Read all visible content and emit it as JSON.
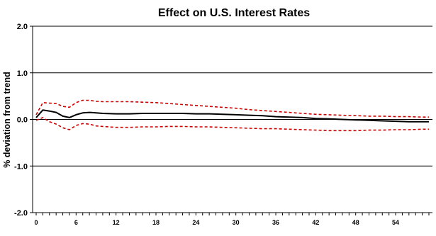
{
  "chart_data": {
    "type": "line",
    "title": "Effect on U.S. Interest Rates",
    "xlabel": "",
    "ylabel": "% deviation from trend",
    "ylim": [
      -2.0,
      2.0
    ],
    "xlim": [
      0,
      59
    ],
    "y_ticks": [
      2.0,
      1.0,
      0.0,
      -1.0,
      -2.0
    ],
    "y_tick_labels": [
      "2.0",
      "1.0",
      "0.0",
      "-1.0",
      "-2.0"
    ],
    "x_ticks": [
      0,
      6,
      12,
      18,
      24,
      30,
      36,
      42,
      48,
      54
    ],
    "x_tick_labels": [
      "0",
      "6",
      "12",
      "18",
      "24",
      "30",
      "36",
      "42",
      "48",
      "54"
    ],
    "grid": "horizontal",
    "legend": "none",
    "series": [
      {
        "style": "solid",
        "color": "#000000",
        "x": [
          0,
          1,
          2,
          3,
          4,
          5,
          6,
          7,
          8,
          9,
          10,
          12,
          14,
          16,
          18,
          20,
          22,
          24,
          26,
          28,
          30,
          32,
          34,
          36,
          38,
          40,
          42,
          44,
          46,
          48,
          50,
          52,
          54,
          56,
          58,
          59
        ],
        "values": [
          0.04,
          0.2,
          0.18,
          0.15,
          0.07,
          0.04,
          0.1,
          0.14,
          0.15,
          0.14,
          0.13,
          0.12,
          0.12,
          0.13,
          0.13,
          0.13,
          0.13,
          0.12,
          0.12,
          0.11,
          0.1,
          0.09,
          0.08,
          0.06,
          0.05,
          0.04,
          0.02,
          0.01,
          0.0,
          -0.01,
          -0.02,
          -0.03,
          -0.04,
          -0.05,
          -0.05,
          -0.05
        ]
      },
      {
        "style": "dashed",
        "color": "#cc0000",
        "x": [
          0,
          1,
          2,
          3,
          4,
          5,
          6,
          7,
          8,
          9,
          10,
          12,
          14,
          16,
          18,
          20,
          22,
          24,
          26,
          28,
          30,
          32,
          34,
          36,
          38,
          40,
          42,
          44,
          46,
          48,
          50,
          52,
          54,
          56,
          58,
          59
        ],
        "values": [
          0.1,
          0.36,
          0.35,
          0.34,
          0.28,
          0.26,
          0.36,
          0.41,
          0.41,
          0.39,
          0.38,
          0.38,
          0.38,
          0.37,
          0.36,
          0.34,
          0.32,
          0.3,
          0.28,
          0.26,
          0.24,
          0.21,
          0.19,
          0.17,
          0.15,
          0.13,
          0.11,
          0.1,
          0.09,
          0.08,
          0.07,
          0.07,
          0.06,
          0.06,
          0.05,
          0.05
        ]
      },
      {
        "style": "dashed",
        "color": "#cc0000",
        "x": [
          0,
          1,
          2,
          3,
          4,
          5,
          6,
          7,
          8,
          9,
          10,
          12,
          14,
          16,
          18,
          20,
          22,
          24,
          26,
          28,
          30,
          32,
          34,
          36,
          38,
          40,
          42,
          44,
          46,
          48,
          50,
          52,
          54,
          56,
          58,
          59
        ],
        "values": [
          -0.02,
          0.04,
          -0.05,
          -0.1,
          -0.18,
          -0.22,
          -0.13,
          -0.09,
          -0.1,
          -0.14,
          -0.15,
          -0.17,
          -0.17,
          -0.16,
          -0.16,
          -0.15,
          -0.15,
          -0.16,
          -0.16,
          -0.17,
          -0.18,
          -0.19,
          -0.2,
          -0.2,
          -0.21,
          -0.22,
          -0.23,
          -0.24,
          -0.24,
          -0.24,
          -0.23,
          -0.23,
          -0.22,
          -0.22,
          -0.21,
          -0.21
        ]
      }
    ]
  }
}
